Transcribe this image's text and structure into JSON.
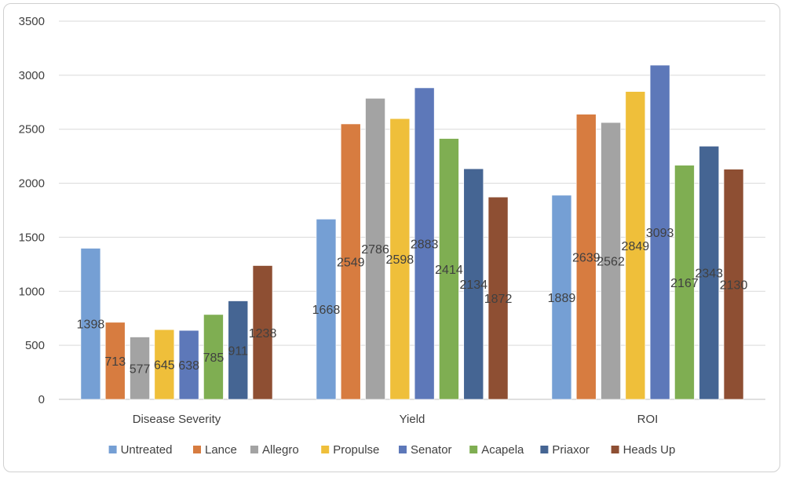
{
  "chart_data": {
    "type": "bar",
    "categories": [
      "Disease Severity",
      "Yield",
      "ROI"
    ],
    "series": [
      {
        "name": "Untreated",
        "color": "#759fd4",
        "values": [
          1398,
          1668,
          1889
        ]
      },
      {
        "name": "Lance",
        "color": "#d77c40",
        "values": [
          713,
          2549,
          2639
        ]
      },
      {
        "name": "Allegro",
        "color": "#a3a3a3",
        "values": [
          577,
          2786,
          2562
        ]
      },
      {
        "name": "Propulse",
        "color": "#efbf3a",
        "values": [
          645,
          2598,
          2849
        ]
      },
      {
        "name": "Senator",
        "color": "#5d78b9",
        "values": [
          638,
          2883,
          3093
        ]
      },
      {
        "name": "Acapela",
        "color": "#7fae52",
        "values": [
          785,
          2414,
          2167
        ]
      },
      {
        "name": "Priaxor",
        "color": "#456593",
        "values": [
          911,
          2134,
          2343
        ]
      },
      {
        "name": "Heads Up",
        "color": "#8e4f33",
        "values": [
          1238,
          1872,
          2130
        ]
      }
    ],
    "ylim": [
      0,
      3500
    ],
    "yticks": [
      0,
      500,
      1000,
      1500,
      2000,
      2500,
      3000,
      3500
    ],
    "grid": true,
    "legend": "bottom",
    "data_labels": true,
    "title": "",
    "xlabel": "",
    "ylabel": ""
  }
}
